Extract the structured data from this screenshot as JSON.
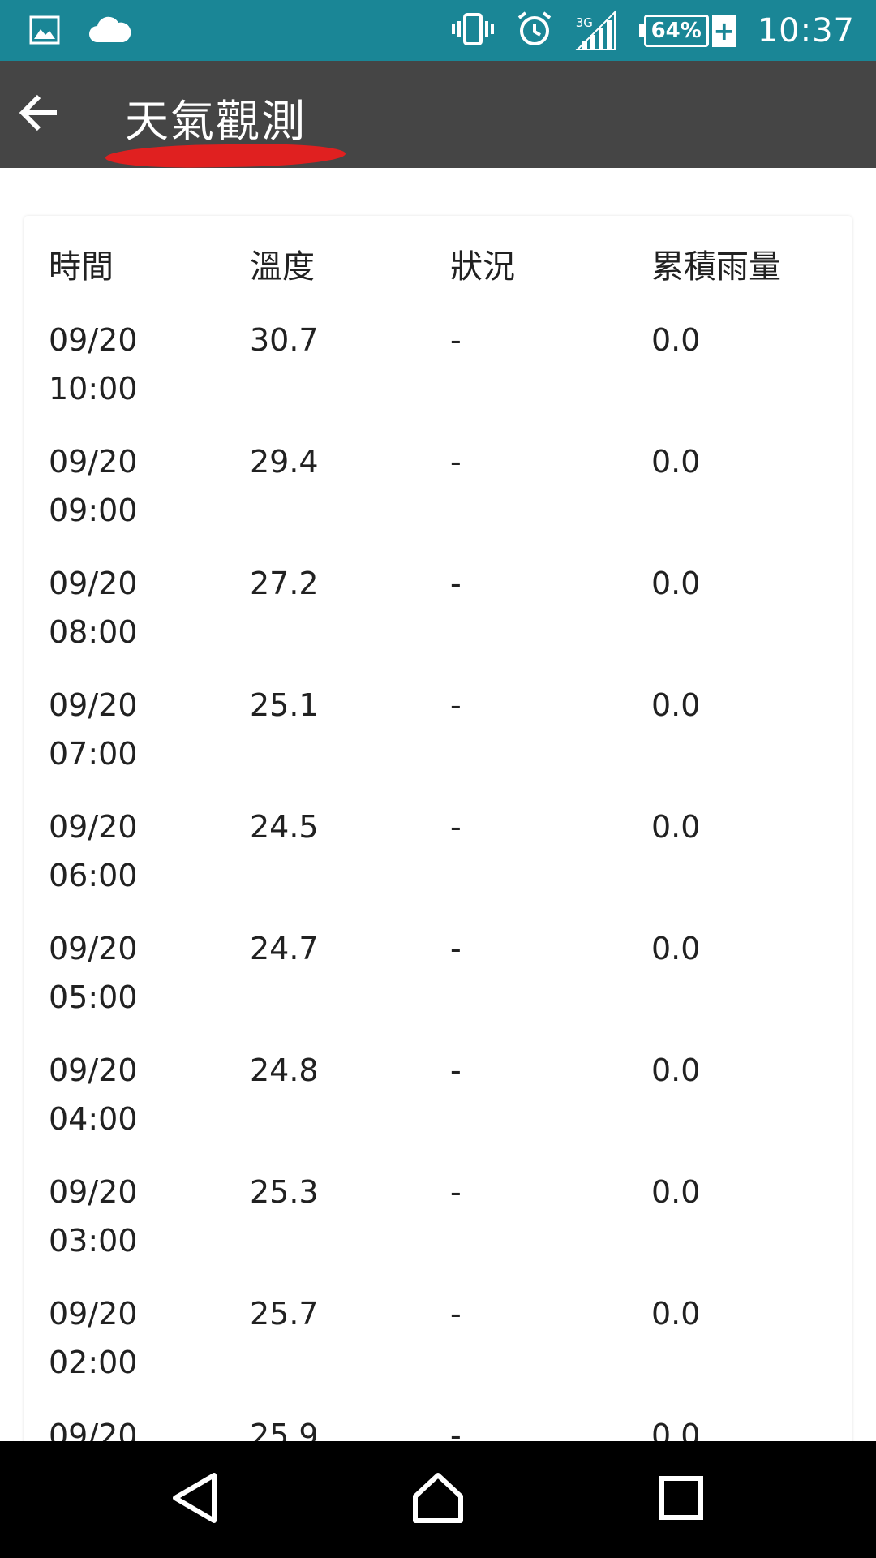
{
  "status_bar": {
    "battery_percent": "64%",
    "battery_charging": "+",
    "network_type": "3G",
    "time": "10:37",
    "background_color": "#1a8696"
  },
  "app_bar": {
    "title": "天氣觀測",
    "background_color": "#454545",
    "underline_color": "#e02020"
  },
  "table": {
    "headers": [
      "時間",
      "溫度",
      "狀況",
      "累積雨量"
    ],
    "rows": [
      {
        "date": "09/20",
        "time": "10:00",
        "temp": "30.7",
        "status": "-",
        "rain": "0.0"
      },
      {
        "date": "09/20",
        "time": "09:00",
        "temp": "29.4",
        "status": "-",
        "rain": "0.0"
      },
      {
        "date": "09/20",
        "time": "08:00",
        "temp": "27.2",
        "status": "-",
        "rain": "0.0"
      },
      {
        "date": "09/20",
        "time": "07:00",
        "temp": "25.1",
        "status": "-",
        "rain": "0.0"
      },
      {
        "date": "09/20",
        "time": "06:00",
        "temp": "24.5",
        "status": "-",
        "rain": "0.0"
      },
      {
        "date": "09/20",
        "time": "05:00",
        "temp": "24.7",
        "status": "-",
        "rain": "0.0"
      },
      {
        "date": "09/20",
        "time": "04:00",
        "temp": "24.8",
        "status": "-",
        "rain": "0.0"
      },
      {
        "date": "09/20",
        "time": "03:00",
        "temp": "25.3",
        "status": "-",
        "rain": "0.0"
      },
      {
        "date": "09/20",
        "time": "02:00",
        "temp": "25.7",
        "status": "-",
        "rain": "0.0"
      },
      {
        "date": "09/20",
        "time": "",
        "temp": "25.9",
        "status": "-",
        "rain": "0.0"
      }
    ]
  },
  "icons": {
    "status_left": [
      "image-icon",
      "cloud-icon"
    ],
    "status_right": [
      "vibrate-icon",
      "alarm-icon",
      "signal-icon",
      "battery-icon"
    ],
    "app_bar": [
      "back-arrow-icon"
    ],
    "nav": [
      "nav-back-icon",
      "nav-home-icon",
      "nav-recents-icon"
    ]
  }
}
